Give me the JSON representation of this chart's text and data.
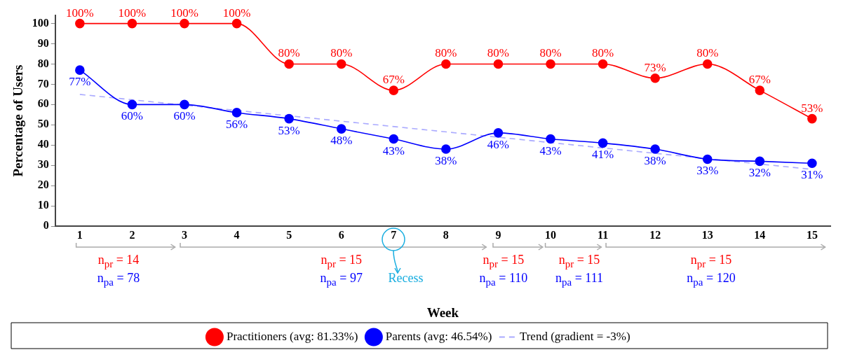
{
  "chart_data": {
    "type": "line",
    "xlabel": "Week",
    "ylabel": "Percentage of Users",
    "x": [
      1,
      2,
      3,
      4,
      5,
      6,
      7,
      8,
      9,
      10,
      11,
      12,
      13,
      14,
      15
    ],
    "xlim": [
      0.53,
      15.35
    ],
    "xticks": [
      1,
      2,
      3,
      4,
      5,
      6,
      7,
      8,
      9,
      10,
      11,
      12,
      13,
      14,
      15
    ],
    "ylim": [
      0,
      104
    ],
    "yticks": [
      0,
      10,
      20,
      30,
      40,
      50,
      60,
      70,
      80,
      90,
      100
    ],
    "grid": false,
    "legend": "bottom",
    "marker": "circle",
    "series": [
      {
        "name": "Practitioners (avg: 81.33%)",
        "color": "#ff0000",
        "values": [
          100,
          100,
          100,
          100,
          80,
          80,
          67,
          80,
          80,
          80,
          80,
          73,
          80,
          67,
          53
        ],
        "value_labels": [
          "100%",
          "100%",
          "100%",
          "100%",
          "80%",
          "80%",
          "67%",
          "80%",
          "80%",
          "80%",
          "80%",
          "73%",
          "80%",
          "67%",
          "53%"
        ]
      },
      {
        "name": "Parents (avg: 46.54%)",
        "color": "#0000ff",
        "values": [
          77,
          60,
          60,
          56,
          53,
          48,
          43,
          38,
          46,
          43,
          41,
          38,
          33,
          32,
          31
        ],
        "value_labels": [
          "77%",
          "60%",
          "60%",
          "56%",
          "53%",
          "48%",
          "43%",
          "38%",
          "46%",
          "43%",
          "41%",
          "38%",
          "33%",
          "32%",
          "31%"
        ]
      },
      {
        "name": "Trend (gradient = -3%)",
        "type": "line",
        "color": "#aaaaff",
        "x": [
          1,
          15
        ],
        "values": [
          65,
          28
        ],
        "marker": "none",
        "line_style": "dashed"
      }
    ],
    "annotations": [
      "n$_{pr}$ = 14",
      "n$_{pa}$ = 78",
      "n$_{pr}$ = 15",
      "n$_{pa}$ = 97",
      "Recess",
      "n$_{pr}$ = 15",
      "n$_{pa}$ = 110",
      "n$_{pr}$ = 15",
      "n$_{pa}$ = 111",
      "n$_{pr}$ = 15",
      "n$_{pa}$ = 120"
    ]
  }
}
